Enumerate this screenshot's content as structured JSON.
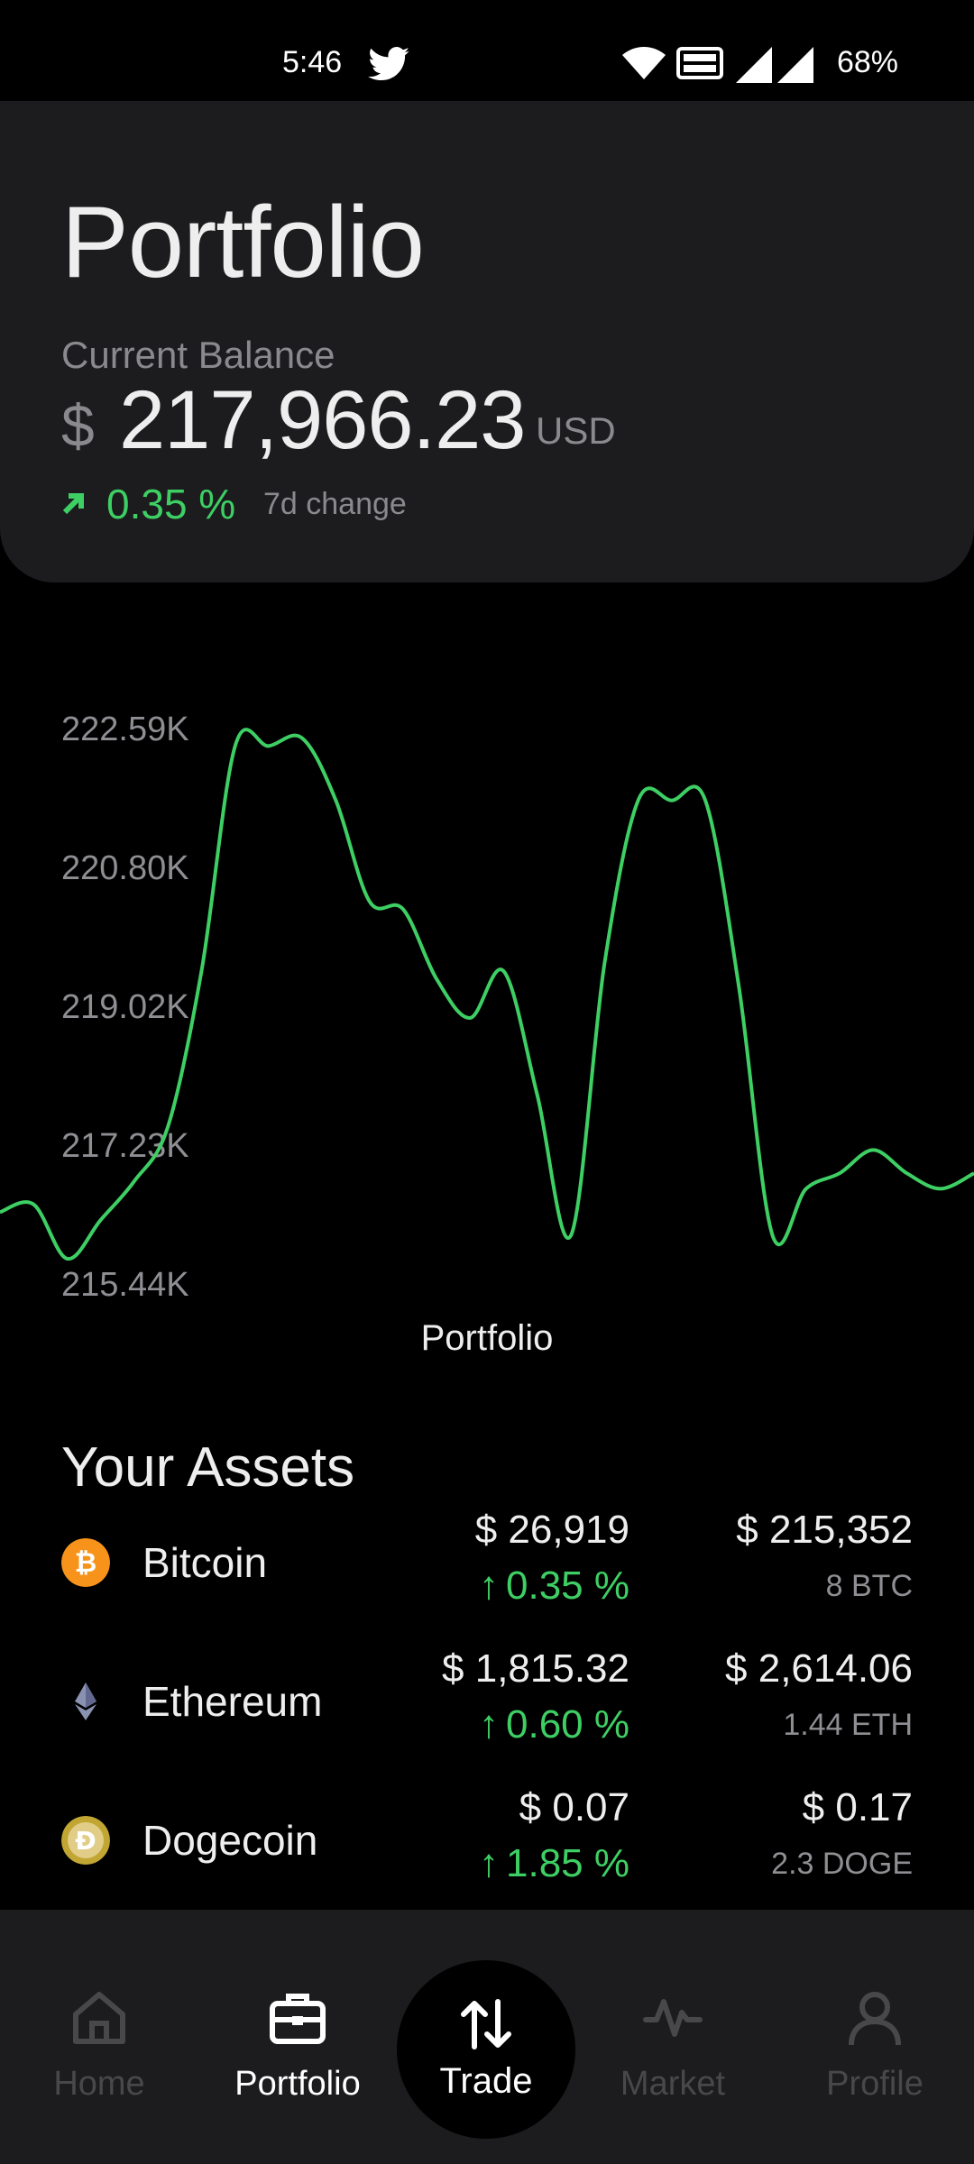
{
  "status_bar": {
    "time": "5:46",
    "battery": "68%"
  },
  "header": {
    "title": "Portfolio",
    "balance_label": "Current Balance",
    "currency_symbol": "$",
    "balance": "217,966.23",
    "balance_unit": "USD",
    "change_pct": "0.35 %",
    "change_label": "7d change",
    "accent_color": "#3ecf64"
  },
  "chart": {
    "label": "Portfolio",
    "y_ticks": [
      "222.59K",
      "220.80K",
      "219.02K",
      "217.23K",
      "215.44K"
    ]
  },
  "chart_data": {
    "type": "line",
    "ylim": [
      215.44,
      222.59
    ],
    "yticks": [
      222.59,
      220.8,
      219.02,
      217.23,
      215.44
    ],
    "title": "",
    "xlabel": "Portfolio",
    "ylabel": "",
    "grid": false,
    "series": [
      {
        "color": "#3ecf64",
        "values": [
          216.4,
          216.5,
          215.8,
          216.3,
          216.8,
          217.5,
          219.5,
          222.4,
          222.4,
          222.5,
          221.7,
          220.4,
          220.3,
          219.4,
          218.9,
          219.5,
          217.9,
          216.1,
          219.6,
          221.7,
          221.7,
          221.7,
          219.3,
          216.1,
          216.7,
          216.9,
          217.2,
          216.9,
          216.7,
          216.9
        ]
      }
    ]
  },
  "assets": {
    "title": "Your Assets",
    "items": [
      {
        "name": "Bitcoin",
        "price": "$ 26,919",
        "change": "0.35 %",
        "value": "$ 215,352",
        "quantity": "8 BTC",
        "icon": "bitcoin-icon",
        "color": "#f7931a"
      },
      {
        "name": "Ethereum",
        "price": "$ 1,815.32",
        "change": "0.60 %",
        "value": "$ 2,614.06",
        "quantity": "1.44 ETH",
        "icon": "ethereum-icon",
        "color": "#627eea"
      },
      {
        "name": "Dogecoin",
        "price": "$ 0.07",
        "change": "1.85 %",
        "value": "$ 0.17",
        "quantity": "2.3 DOGE",
        "icon": "dogecoin-icon",
        "color": "#c2a633"
      }
    ]
  },
  "nav": {
    "items": [
      {
        "label": "Home",
        "icon": "home-icon",
        "active": false
      },
      {
        "label": "Portfolio",
        "icon": "briefcase-icon",
        "active": true
      },
      {
        "label": "Trade",
        "icon": "swap-vertical-icon",
        "active": false
      },
      {
        "label": "Market",
        "icon": "pulse-icon",
        "active": false
      },
      {
        "label": "Profile",
        "icon": "person-icon",
        "active": false
      }
    ]
  }
}
